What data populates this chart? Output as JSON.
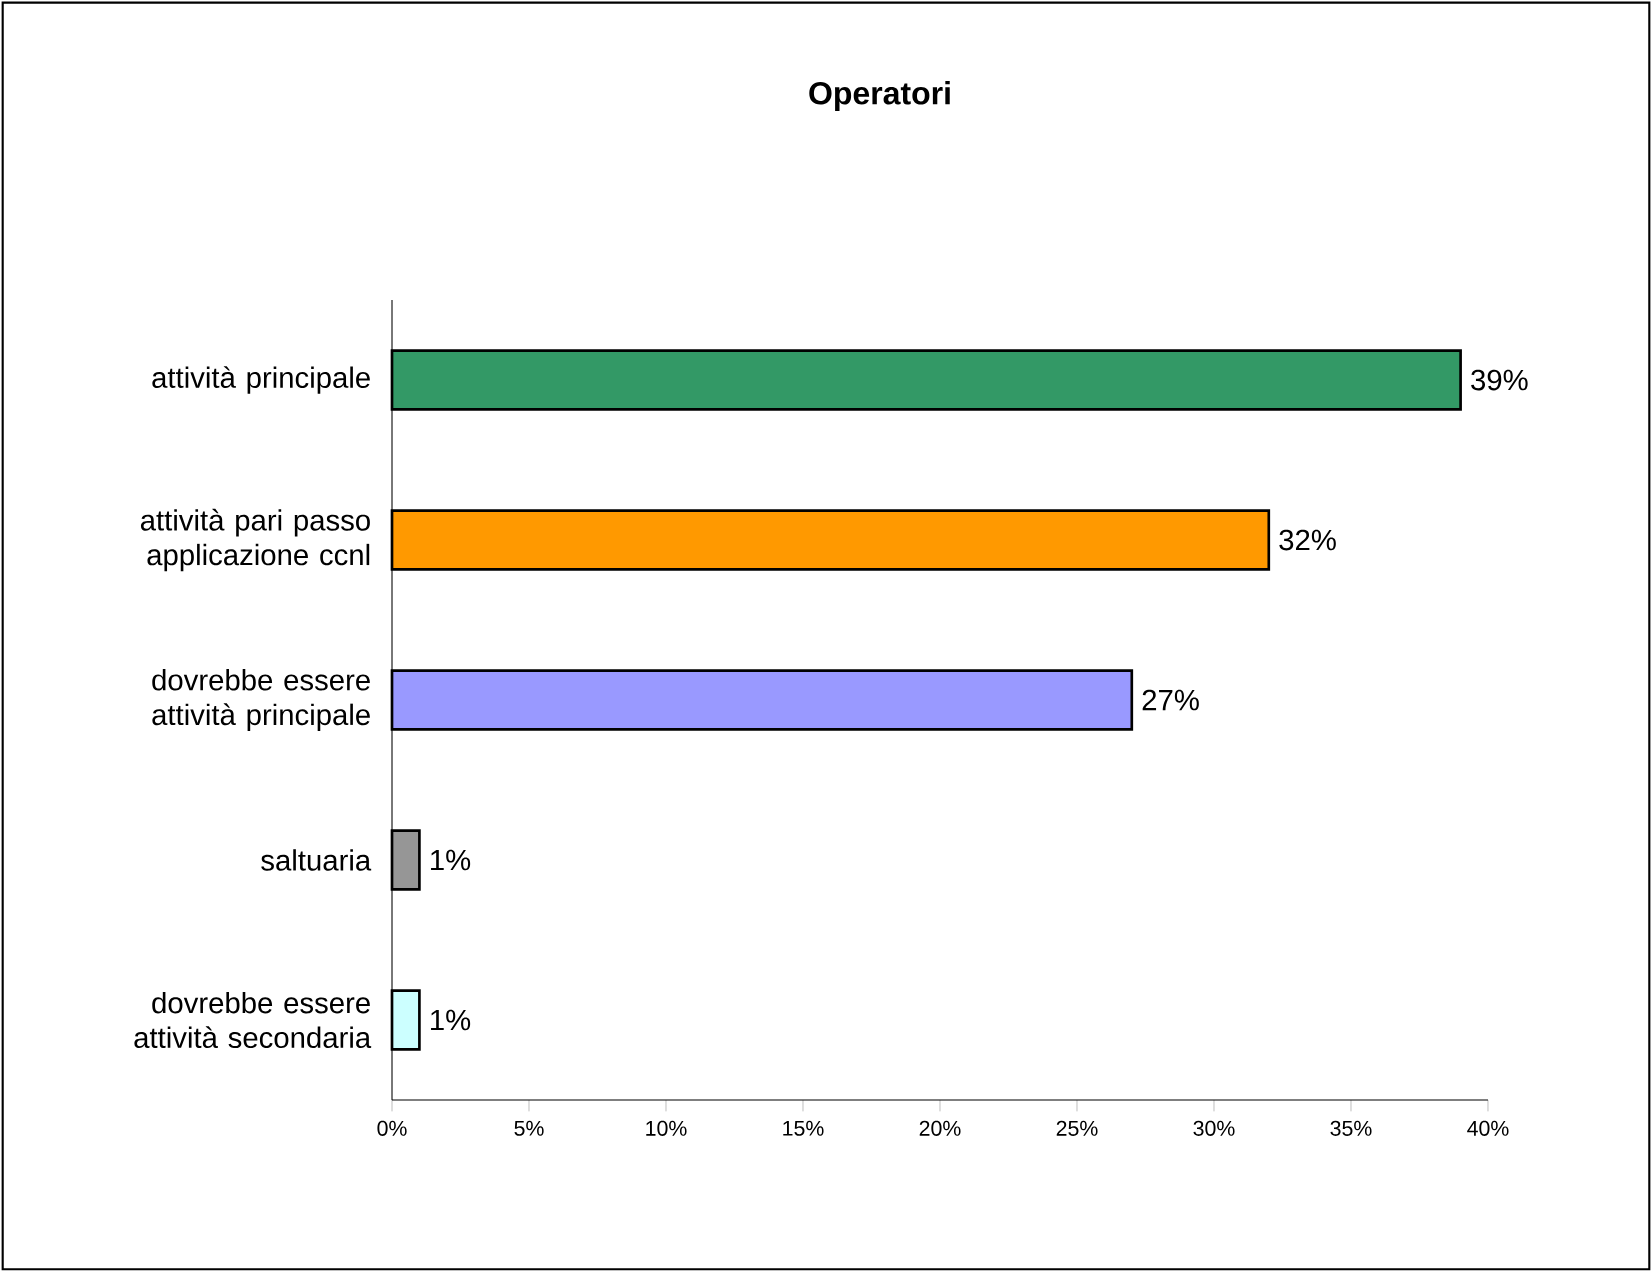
{
  "chart_data": {
    "type": "bar",
    "orientation": "horizontal",
    "title": "Operatori",
    "categories": [
      "attività principale",
      "attività pari passo applicazione ccnl",
      "dovrebbe essere attività principale",
      "saltuaria",
      "dovrebbe essere attività secondaria"
    ],
    "values": [
      39,
      32,
      27,
      1,
      1
    ],
    "colors": [
      "#339966",
      "#ff9900",
      "#9999ff",
      "#969696",
      "#ccffff"
    ],
    "value_labels": [
      "39%",
      "32%",
      "27%",
      "1%",
      "1%"
    ],
    "xlim": [
      0,
      40
    ],
    "xticks": [
      {
        "value": 0,
        "label": "0%"
      },
      {
        "value": 5,
        "label": "5%"
      },
      {
        "value": 10,
        "label": "10%"
      },
      {
        "value": 15,
        "label": "15%"
      },
      {
        "value": 20,
        "label": "20%"
      },
      {
        "value": 25,
        "label": "25%"
      },
      {
        "value": 30,
        "label": "30%"
      },
      {
        "value": 35,
        "label": "35%"
      },
      {
        "value": 40,
        "label": "40%"
      }
    ]
  }
}
